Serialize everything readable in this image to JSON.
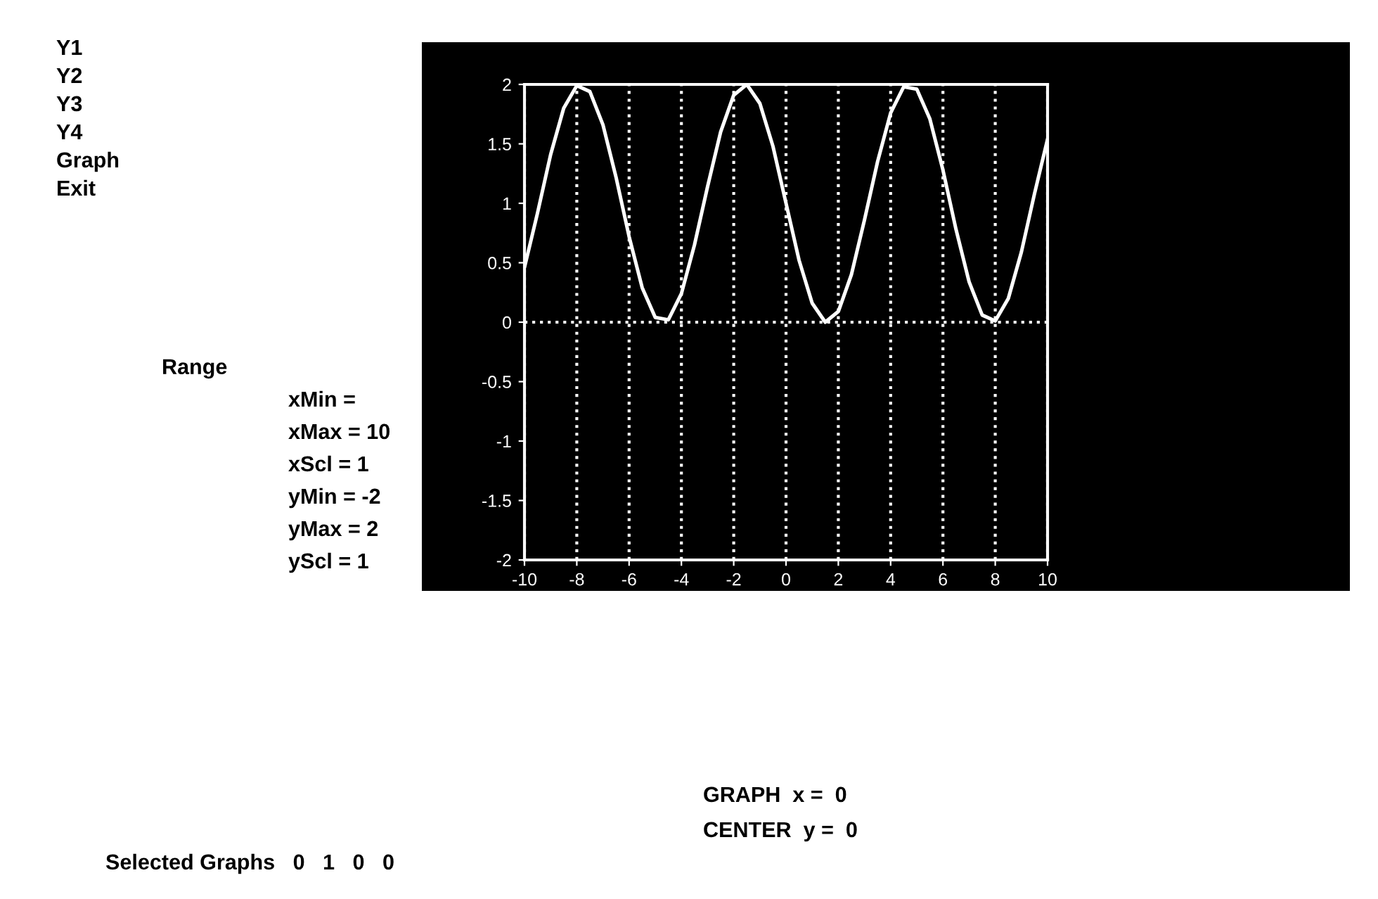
{
  "chart_data": {
    "type": "line",
    "x": [
      -10,
      -9.5,
      -9,
      -8.5,
      -8,
      -7.5,
      -7,
      -6.5,
      -6,
      -5.5,
      -5,
      -4.5,
      -4,
      -3.5,
      -3,
      -2.5,
      -2,
      -1.5,
      -1,
      -0.5,
      0,
      0.5,
      1,
      1.5,
      2,
      2.5,
      3,
      3.5,
      4,
      4.5,
      5,
      5.5,
      6,
      6.5,
      7,
      7.5,
      8,
      8.5,
      9,
      9.5,
      10
    ],
    "series": [
      {
        "color": "#ffffff",
        "values": [
          0.46,
          0.92,
          1.41,
          1.8,
          1.99,
          1.94,
          1.66,
          1.22,
          0.72,
          0.29,
          0.04,
          0.02,
          0.24,
          0.65,
          1.14,
          1.6,
          1.91,
          2.0,
          1.84,
          1.48,
          1.0,
          0.52,
          0.16,
          0.0,
          0.09,
          0.4,
          0.86,
          1.35,
          1.76,
          1.98,
          1.96,
          1.71,
          1.28,
          0.78,
          0.34,
          0.06,
          0.01,
          0.2,
          0.59,
          1.08,
          1.54
        ]
      }
    ],
    "xlim": [
      -10,
      10
    ],
    "xticks": [
      -10,
      -8,
      -6,
      -4,
      -2,
      0,
      2,
      4,
      6,
      8,
      10
    ],
    "ylim": [
      -2,
      2
    ],
    "yticks": [
      -2,
      -1.5,
      -1,
      -0.5,
      0,
      0.5,
      1,
      1.5,
      2
    ],
    "grid": "x",
    "marker": "none",
    "line_style": "solid",
    "ref_lines": [
      {
        "axis": "y",
        "value": 0,
        "line_style": "dotted",
        "color": "#ffffff"
      }
    ],
    "annotations": [
      "Y1",
      "Y2",
      "Y3",
      "Y4",
      "Graph",
      "Exit",
      "Range",
      "xMin =",
      "xMax = 10",
      "xScl = 1",
      "yMin = -2",
      "yMax = 2",
      "yScl = 1",
      "GRAPH  x =  0",
      "CENTER  y =  0",
      "Selected Graphs   0   1   0   0"
    ]
  }
}
